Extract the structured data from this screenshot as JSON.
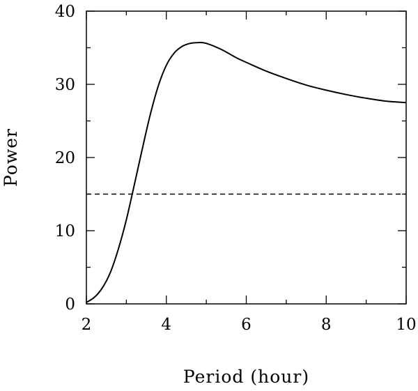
{
  "chart_data": {
    "type": "line",
    "title": "",
    "xlabel": "Period (hour)",
    "ylabel": "Power",
    "xlim": [
      2,
      10
    ],
    "ylim": [
      0,
      40
    ],
    "xticks_major": [
      2,
      4,
      6,
      8,
      10
    ],
    "xticks_major_labels": [
      "2",
      "4",
      "6",
      "8",
      "10"
    ],
    "xticks_minor": [
      3,
      5,
      7,
      9
    ],
    "yticks_major": [
      0,
      10,
      20,
      30,
      40
    ],
    "yticks_major_labels": [
      "0",
      "10",
      "20",
      "30",
      "40"
    ],
    "yticks_minor": [
      5,
      15,
      25,
      35
    ],
    "grid": false,
    "legend": "none",
    "series": [
      {
        "style": "solid",
        "color": "#000000",
        "x": [
          2.0,
          2.2,
          2.4,
          2.6,
          2.8,
          3.0,
          3.2,
          3.4,
          3.6,
          3.8,
          4.0,
          4.2,
          4.4,
          4.6,
          4.8,
          4.9,
          5.0,
          5.2,
          5.4,
          5.6,
          5.8,
          6.0,
          6.5,
          7.0,
          7.5,
          8.0,
          8.5,
          9.0,
          9.5,
          10.0
        ],
        "y": [
          0.2,
          0.9,
          2.2,
          4.3,
          7.5,
          11.5,
          16.3,
          21.2,
          25.9,
          29.8,
          32.6,
          34.3,
          35.2,
          35.6,
          35.7,
          35.7,
          35.6,
          35.2,
          34.7,
          34.1,
          33.5,
          33.0,
          31.8,
          30.8,
          29.9,
          29.2,
          28.6,
          28.1,
          27.7,
          27.5
        ]
      },
      {
        "style": "dashed",
        "color": "#000000",
        "x": [
          2,
          10
        ],
        "y": [
          15,
          15
        ]
      }
    ]
  }
}
